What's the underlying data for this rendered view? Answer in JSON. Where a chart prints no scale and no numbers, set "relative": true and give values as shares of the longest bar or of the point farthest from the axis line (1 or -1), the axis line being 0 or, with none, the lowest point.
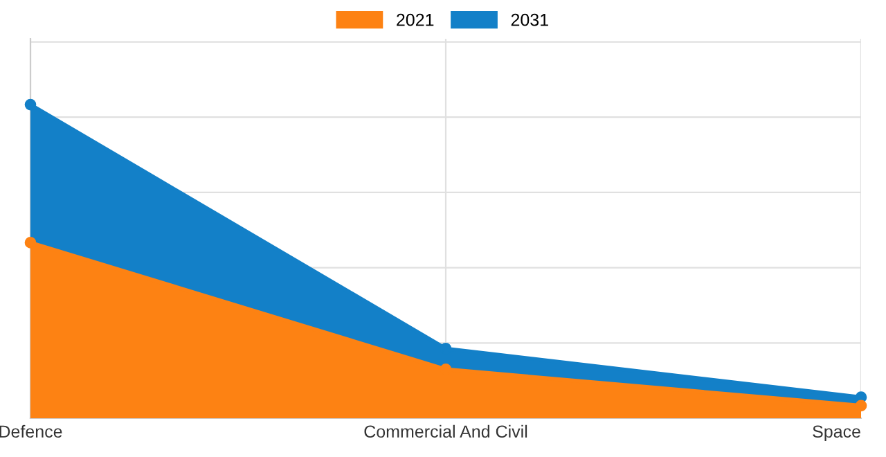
{
  "chart_data": {
    "type": "area",
    "relative": true,
    "categories": [
      "Defence",
      "Commercial And Civil",
      "Space"
    ],
    "series": [
      {
        "name": "2021",
        "color": "#fd8213",
        "values": [
          0.56,
          0.156,
          0.04
        ]
      },
      {
        "name": "2031",
        "color": "#1380c8",
        "values": [
          1,
          0.222,
          0.067
        ]
      }
    ],
    "grid": true,
    "legend": "top",
    "marker": "circle"
  }
}
